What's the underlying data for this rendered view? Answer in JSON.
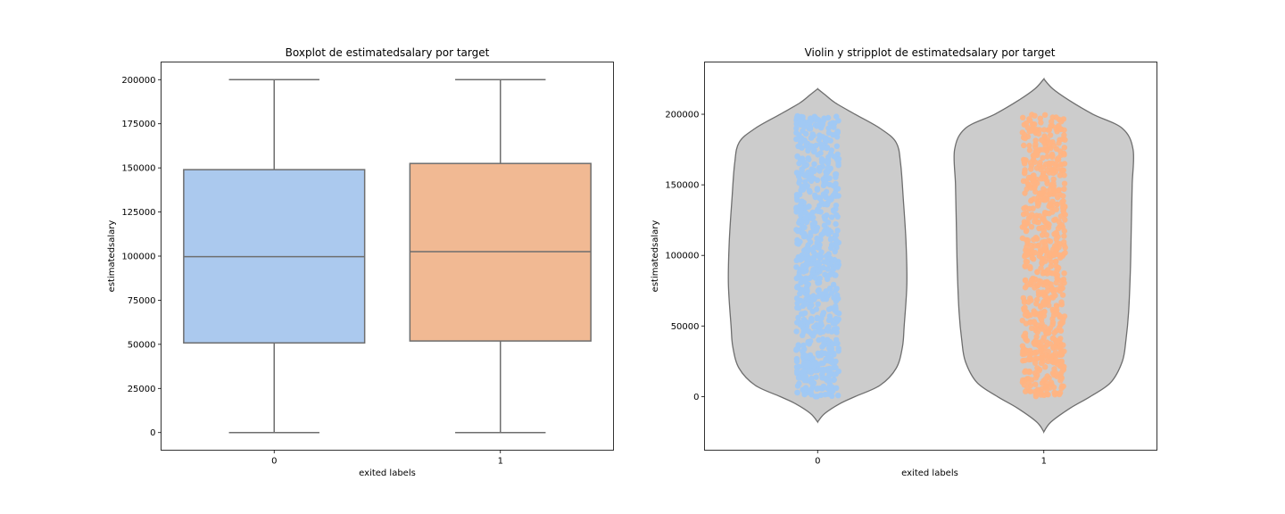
{
  "chart_data": [
    {
      "type": "box",
      "title": "Boxplot de estimatedsalary por target",
      "xlabel": "exited labels",
      "ylabel": "estimatedsalary",
      "categories": [
        "0",
        "1"
      ],
      "ylim": [
        -10000,
        210000
      ],
      "yticks": [
        0,
        25000,
        50000,
        75000,
        100000,
        125000,
        150000,
        175000,
        200000
      ],
      "colors": [
        "#abc9ee",
        "#f1b993"
      ],
      "boxes": [
        {
          "category": "0",
          "min": 0,
          "q1": 50800,
          "median": 99700,
          "q3": 149000,
          "max": 200000
        },
        {
          "category": "1",
          "min": 0,
          "q1": 51900,
          "median": 102500,
          "q3": 152500,
          "max": 200000
        }
      ]
    },
    {
      "type": "violin",
      "title": "Violin y stripplot de estimatedsalary por target",
      "xlabel": "exited labels",
      "ylabel": "estimatedsalary",
      "categories": [
        "0",
        "1"
      ],
      "ylim": [
        -38000,
        237000
      ],
      "yticks": [
        0,
        50000,
        100000,
        150000,
        200000
      ],
      "violin_color": "#cccccc",
      "strip_colors": [
        "#a1c9f4",
        "#ffb482"
      ],
      "violins": [
        {
          "category": "0",
          "min": -18000,
          "max": 218000
        },
        {
          "category": "1",
          "min": -25000,
          "max": 225000
        }
      ]
    }
  ]
}
